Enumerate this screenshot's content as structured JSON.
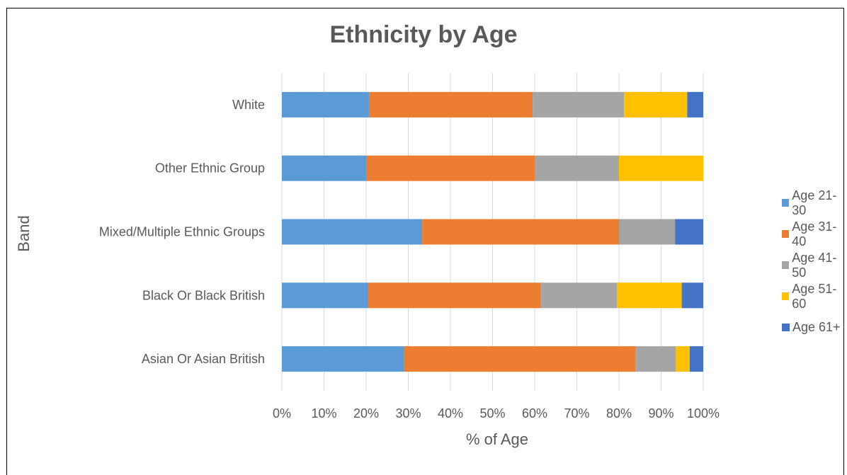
{
  "chart_data": {
    "type": "bar",
    "orientation": "horizontal",
    "stacked": "percent",
    "title": "Ethnicity by Age",
    "xlabel": "% of Age",
    "ylabel": "Band",
    "xlim": [
      0,
      100
    ],
    "x_ticks": [
      "0%",
      "10%",
      "20%",
      "30%",
      "40%",
      "50%",
      "60%",
      "70%",
      "80%",
      "90%",
      "100%"
    ],
    "grid": true,
    "legend_position": "right",
    "categories": [
      "Asian Or Asian British",
      "Black Or Black British",
      "Mixed/Multiple Ethnic Groups",
      "Other Ethnic Group",
      "White"
    ],
    "series": [
      {
        "name": "Age 21-30",
        "color": "#5B9BD5",
        "values": [
          29,
          20.5,
          33.3,
          20,
          20.8
        ]
      },
      {
        "name": "Age 31-40",
        "color": "#ED7D31",
        "values": [
          55,
          41,
          46.7,
          40,
          38.7
        ]
      },
      {
        "name": "Age 41-50",
        "color": "#A5A5A5",
        "values": [
          9.5,
          18,
          13.3,
          20,
          21.7
        ]
      },
      {
        "name": "Age 51-60",
        "color": "#FFC000",
        "values": [
          3.3,
          15.4,
          0,
          20,
          15
        ]
      },
      {
        "name": "Age 61+",
        "color": "#4472C4",
        "values": [
          3.2,
          5.1,
          6.7,
          0,
          3.8
        ]
      }
    ]
  }
}
